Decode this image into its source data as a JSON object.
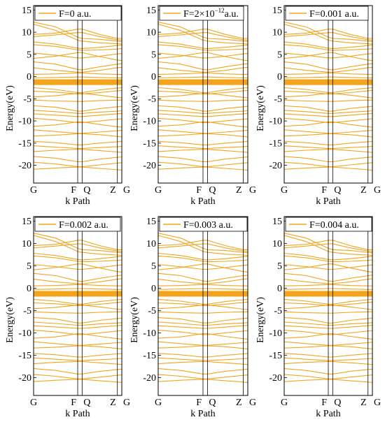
{
  "chart_data": [
    {
      "type": "line",
      "legend": "F=0 a.u.",
      "ylabel": "Energy(eV)",
      "xlabel": "k Path",
      "ylim": [
        -24,
        16
      ],
      "yticks": [
        "-20",
        "-15",
        "-10",
        "-5",
        "0",
        "5",
        "10",
        "15"
      ],
      "yticks_values": [
        -20,
        -15,
        -10,
        -5,
        0,
        5,
        10,
        15
      ],
      "kpoints": [
        {
          "label": "G",
          "x": 0
        },
        {
          "label": "F",
          "x": 0.5
        },
        {
          "label": "Q",
          "x": 0.55
        },
        {
          "label": "Z",
          "x": 0.95
        },
        {
          "label": "G",
          "x": 1.0
        }
      ],
      "legend_placement": "top-left",
      "series_color": "#f2a51c"
    },
    {
      "type": "line",
      "legend": "F=2×10",
      "legend_exp": "−12",
      "legend_suffix": "a.u.",
      "ylabel": "Energy(eV)",
      "xlabel": "k Path",
      "ylim": [
        -24,
        16
      ],
      "yticks": [
        "-20",
        "-15",
        "-10",
        "-5",
        "0",
        "5",
        "10",
        "15"
      ],
      "yticks_values": [
        -20,
        -15,
        -10,
        -5,
        0,
        5,
        10,
        15
      ],
      "kpoints": [
        {
          "label": "G",
          "x": 0
        },
        {
          "label": "F",
          "x": 0.5
        },
        {
          "label": "Q",
          "x": 0.55
        },
        {
          "label": "Z",
          "x": 0.95
        },
        {
          "label": "G",
          "x": 1.0
        }
      ],
      "legend_placement": "top-left",
      "series_color": "#f2a51c"
    },
    {
      "type": "line",
      "legend": "F=0.001 a.u.",
      "ylabel": "Energy(eV)",
      "xlabel": "k Path",
      "ylim": [
        -24,
        16
      ],
      "yticks": [
        "-20",
        "-15",
        "-10",
        "-5",
        "0",
        "5",
        "10",
        "15"
      ],
      "yticks_values": [
        -20,
        -15,
        -10,
        -5,
        0,
        5,
        10,
        15
      ],
      "kpoints": [
        {
          "label": "G",
          "x": 0
        },
        {
          "label": "F",
          "x": 0.5
        },
        {
          "label": "Q",
          "x": 0.55
        },
        {
          "label": "Z",
          "x": 0.95
        },
        {
          "label": "G",
          "x": 1.0
        }
      ],
      "legend_placement": "top-left",
      "series_color": "#f2a51c"
    },
    {
      "type": "line",
      "legend": "F=0.002 a.u.",
      "ylabel": "Energy(eV)",
      "xlabel": "k Path",
      "ylim": [
        -24,
        16
      ],
      "yticks": [
        "-20",
        "-15",
        "-10",
        "-5",
        "0",
        "5",
        "10",
        "15"
      ],
      "yticks_values": [
        -20,
        -15,
        -10,
        -5,
        0,
        5,
        10,
        15
      ],
      "kpoints": [
        {
          "label": "G",
          "x": 0
        },
        {
          "label": "F",
          "x": 0.5
        },
        {
          "label": "Q",
          "x": 0.55
        },
        {
          "label": "Z",
          "x": 0.95
        },
        {
          "label": "G",
          "x": 1.0
        }
      ],
      "legend_placement": "top-left",
      "series_color": "#f2a51c"
    },
    {
      "type": "line",
      "legend": "F=0.003 a.u.",
      "ylabel": "Energy(eV)",
      "xlabel": "k Path",
      "ylim": [
        -24,
        16
      ],
      "yticks": [
        "-20",
        "-15",
        "-10",
        "-5",
        "0",
        "5",
        "10",
        "15"
      ],
      "yticks_values": [
        -20,
        -15,
        -10,
        -5,
        0,
        5,
        10,
        15
      ],
      "kpoints": [
        {
          "label": "G",
          "x": 0
        },
        {
          "label": "F",
          "x": 0.5
        },
        {
          "label": "Q",
          "x": 0.55
        },
        {
          "label": "Z",
          "x": 0.95
        },
        {
          "label": "G",
          "x": 1.0
        }
      ],
      "legend_placement": "top-left",
      "series_color": "#f2a51c"
    },
    {
      "type": "line",
      "legend": "F=0.004 a.u.",
      "ylabel": "Energy(eV)",
      "xlabel": "k Path",
      "ylim": [
        -24,
        16
      ],
      "yticks": [
        "-20",
        "-15",
        "-10",
        "-5",
        "0",
        "5",
        "10",
        "15"
      ],
      "yticks_values": [
        -20,
        -15,
        -10,
        -5,
        0,
        5,
        10,
        15
      ],
      "kpoints": [
        {
          "label": "G",
          "x": 0
        },
        {
          "label": "F",
          "x": 0.5
        },
        {
          "label": "Q",
          "x": 0.55
        },
        {
          "label": "Z",
          "x": 0.95
        },
        {
          "label": "G",
          "x": 1.0
        }
      ],
      "legend_placement": "top-left",
      "series_color": "#f2a51c"
    }
  ],
  "bands": {
    "x": [
      0,
      0.25,
      0.5,
      0.55,
      0.75,
      0.95,
      1.0
    ],
    "energies": [
      [
        12.3,
        11.2,
        8.9,
        8.6,
        8.4,
        8.0,
        7.9
      ],
      [
        11.8,
        10.4,
        8.2,
        8.0,
        7.6,
        7.4,
        7.3
      ],
      [
        9.5,
        9.8,
        10.7,
        10.7,
        9.5,
        8.6,
        8.6
      ],
      [
        9.0,
        9.4,
        9.9,
        9.9,
        9.0,
        8.3,
        8.2
      ],
      [
        7.8,
        7.3,
        6.4,
        6.3,
        6.6,
        7.0,
        7.1
      ],
      [
        7.2,
        6.8,
        6.0,
        5.9,
        6.0,
        6.2,
        6.3
      ],
      [
        5.3,
        4.8,
        4.2,
        4.2,
        4.6,
        5.1,
        5.2
      ],
      [
        4.1,
        4.6,
        5.4,
        5.4,
        4.5,
        3.7,
        3.6
      ],
      [
        3.3,
        2.8,
        1.6,
        1.5,
        2.2,
        2.8,
        2.9
      ],
      [
        2.0,
        1.4,
        1.0,
        1.0,
        1.4,
        2.0,
        2.1
      ],
      [
        0.5,
        0.6,
        0.8,
        0.8,
        0.6,
        0.5,
        0.5
      ],
      [
        -0.3,
        -0.2,
        -0.1,
        -0.1,
        -0.2,
        -0.3,
        -0.3
      ],
      [
        -2.5,
        -2.9,
        -3.6,
        -3.6,
        -3.0,
        -2.6,
        -2.5
      ],
      [
        -3.3,
        -3.5,
        -3.9,
        -3.9,
        -3.6,
        -3.2,
        -3.1
      ],
      [
        -4.6,
        -4.3,
        -3.8,
        -3.8,
        -4.2,
        -4.7,
        -4.8
      ],
      [
        -5.3,
        -5.5,
        -5.6,
        -5.6,
        -5.4,
        -5.3,
        -5.3
      ],
      [
        -6.6,
        -6.9,
        -7.8,
        -7.8,
        -7.2,
        -6.8,
        -6.7
      ],
      [
        -7.6,
        -7.9,
        -8.3,
        -8.3,
        -8.0,
        -7.8,
        -7.7
      ],
      [
        -8.4,
        -8.7,
        -9.0,
        -9.0,
        -8.7,
        -8.4,
        -8.3
      ],
      [
        -9.4,
        -9.8,
        -10.4,
        -10.4,
        -10.0,
        -9.6,
        -9.5
      ],
      [
        -11.2,
        -10.9,
        -10.2,
        -10.2,
        -10.8,
        -11.3,
        -11.4
      ],
      [
        -12.0,
        -12.4,
        -12.8,
        -12.8,
        -12.5,
        -12.2,
        -12.1
      ],
      [
        -13.4,
        -13.2,
        -12.9,
        -12.9,
        -13.1,
        -13.5,
        -13.6
      ],
      [
        -14.6,
        -14.9,
        -15.4,
        -15.4,
        -15.0,
        -14.7,
        -14.6
      ],
      [
        -15.6,
        -15.9,
        -16.2,
        -16.2,
        -16.0,
        -15.8,
        -15.7
      ],
      [
        -16.9,
        -16.6,
        -16.4,
        -16.4,
        -16.7,
        -17.0,
        -17.1
      ],
      [
        -18.0,
        -18.4,
        -19.2,
        -19.2,
        -18.6,
        -18.2,
        -18.1
      ],
      [
        -19.3,
        -19.7,
        -20.3,
        -20.3,
        -19.9,
        -19.5,
        -19.4
      ],
      [
        -20.9,
        -20.6,
        -20.4,
        -20.4,
        -20.7,
        -21.0,
        -21.1
      ]
    ],
    "flat_bands": [
      -0.85,
      -1.05,
      -1.25,
      -1.45,
      -1.65
    ]
  }
}
